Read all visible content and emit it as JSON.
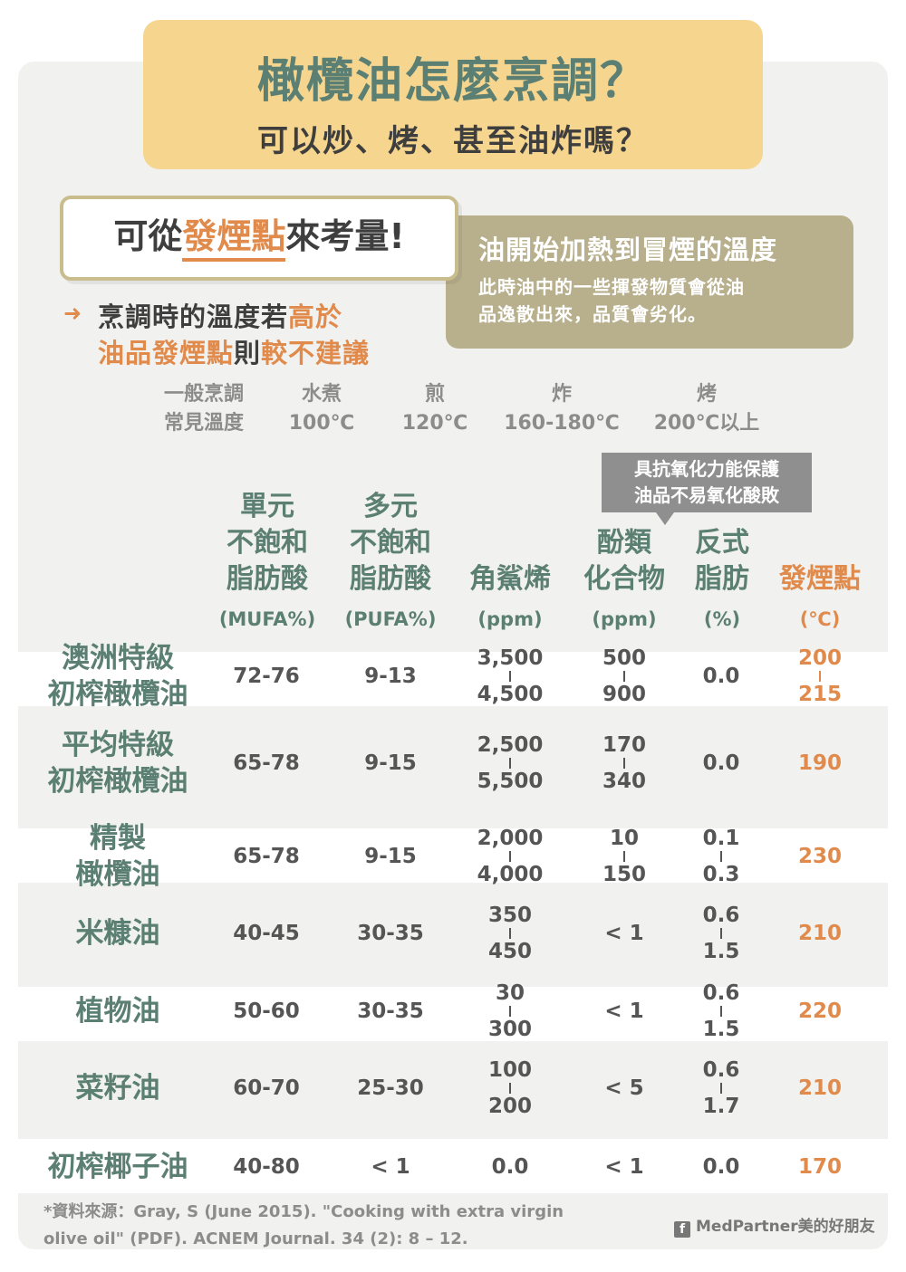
{
  "header": {
    "title": "橄欖油怎麼烹調？",
    "subtitle": "可以炒、烤、甚至油炸嗎？"
  },
  "tag": {
    "prefix": "可從",
    "highlight": "發煙點",
    "suffix": "來考量!"
  },
  "info": {
    "title": "油開始加熱到冒煙的溫度",
    "line1": "此時油中的一些揮發物質會從油",
    "line2": "品逸散出來，品質會劣化。"
  },
  "note": {
    "arrow": "➜",
    "p1": "烹調時的溫度若",
    "h1": "高於",
    "h2": "油品發煙點",
    "p2": "則",
    "h3": "較不建議"
  },
  "cooking": {
    "label1": "一般烹調",
    "label2": "常見溫度",
    "methods": [
      {
        "name": "水煮",
        "temp": "100℃"
      },
      {
        "name": "煎",
        "temp": "120℃"
      },
      {
        "name": "炸",
        "temp": "160-180℃"
      },
      {
        "name": "烤",
        "temp": "200℃以上"
      }
    ]
  },
  "callout": {
    "line1": "具抗氧化力能保護",
    "line2": "油品不易氧化酸敗"
  },
  "columns": [
    {
      "l1": "單元",
      "l2": "不飽和",
      "l3": "脂肪酸",
      "unit": "(MUFA%)"
    },
    {
      "l1": "多元",
      "l2": "不飽和",
      "l3": "脂肪酸",
      "unit": "(PUFA%)"
    },
    {
      "l1": "",
      "l2": "",
      "l3": "角鯊烯",
      "unit": "(ppm)"
    },
    {
      "l1": "",
      "l2": "酚類",
      "l3": "化合物",
      "unit": "(ppm)"
    },
    {
      "l1": "",
      "l2": "反式",
      "l3": "脂肪",
      "unit": "(%)"
    },
    {
      "l1": "",
      "l2": "",
      "l3": "發煙點",
      "unit": "(℃)"
    }
  ],
  "rows": [
    {
      "name1": "澳洲特級",
      "name2": "初榨橄欖油",
      "mufa": "72-76",
      "pufa": "9-13",
      "squalene": [
        "3,500",
        "4,500"
      ],
      "phenol": [
        "500",
        "900"
      ],
      "trans": "0.0",
      "smoke": [
        "200",
        "215"
      ]
    },
    {
      "name1": "平均特級",
      "name2": "初榨橄欖油",
      "mufa": "65-78",
      "pufa": "9-15",
      "squalene": [
        "2,500",
        "5,500"
      ],
      "phenol": [
        "170",
        "340"
      ],
      "trans": "0.0",
      "smoke": "190"
    },
    {
      "name1": "精製",
      "name2": "橄欖油",
      "mufa": "65-78",
      "pufa": "9-15",
      "squalene": [
        "2,000",
        "4,000"
      ],
      "phenol": [
        "10",
        "150"
      ],
      "trans": [
        "0.1",
        "0.3"
      ],
      "smoke": "230"
    },
    {
      "name1": "米糠油",
      "name2": "",
      "mufa": "40-45",
      "pufa": "30-35",
      "squalene": [
        "350",
        "450"
      ],
      "phenol": "< 1",
      "trans": [
        "0.6",
        "1.5"
      ],
      "smoke": "210"
    },
    {
      "name1": "植物油",
      "name2": "",
      "mufa": "50-60",
      "pufa": "30-35",
      "squalene": [
        "30",
        "300"
      ],
      "phenol": "< 1",
      "trans": [
        "0.6",
        "1.5"
      ],
      "smoke": "220"
    },
    {
      "name1": "菜籽油",
      "name2": "",
      "mufa": "60-70",
      "pufa": "25-30",
      "squalene": [
        "100",
        "200"
      ],
      "phenol": "< 5",
      "trans": [
        "0.6",
        "1.7"
      ],
      "smoke": "210"
    },
    {
      "name1": "初榨椰子油",
      "name2": "",
      "mufa": "40-80",
      "pufa": "< 1",
      "squalene": "0.0",
      "phenol": "< 1",
      "trans": "0.0",
      "smoke": "170"
    }
  ],
  "source": {
    "line1": "*資料來源：Gray, S (June 2015). \"Cooking with extra virgin",
    "line2": "olive oil\" (PDF). ACNEM Journal. 34 (2): 8 – 12."
  },
  "brand": {
    "icon": "f",
    "text": "MedPartner美的好朋友"
  },
  "colors": {
    "green": "#5b7f73",
    "orange": "#e08a4c",
    "yellow": "#f6d58f",
    "khaki": "#b8b08c"
  }
}
